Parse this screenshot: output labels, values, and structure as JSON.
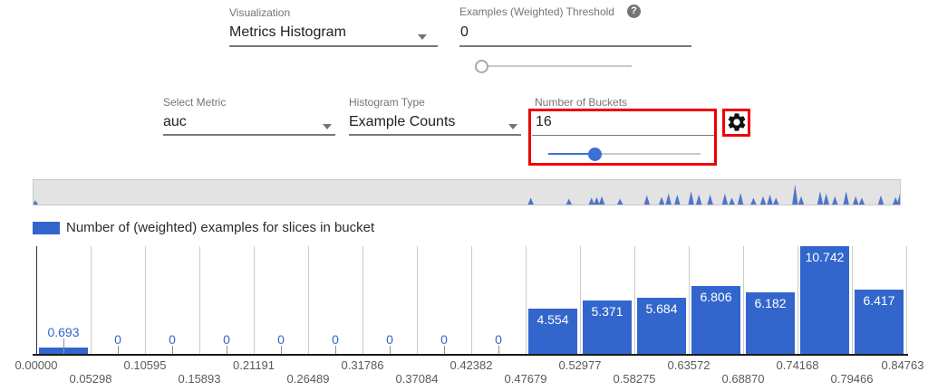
{
  "ui": {
    "colors": {
      "bar_blue": "#3366cc",
      "slider_blue": "#3d6fd6",
      "highlight_red": "#ec0000",
      "strip_bg": "#e3e3e3",
      "spike_blue": "#3e68c8"
    },
    "help_glyph": "?"
  },
  "controls": {
    "visualization": {
      "label": "Visualization",
      "value": "Metrics Histogram"
    },
    "threshold": {
      "label": "Examples (Weighted) Threshold",
      "value": "0",
      "slider_percent": 0
    },
    "select_metric": {
      "label": "Select Metric",
      "value": "auc"
    },
    "histogram_type": {
      "label": "Histogram Type",
      "value": "Example Counts"
    },
    "num_buckets": {
      "label": "Number of Buckets",
      "value": "16",
      "slider_percent": 31
    }
  },
  "legend": {
    "label": "Number of (weighted) examples for slices in bucket"
  },
  "chart_data": {
    "type": "bar",
    "title": "Number of (weighted) examples for slices in bucket",
    "categories": [
      "0.00000",
      "0.05298",
      "0.10595",
      "0.15893",
      "0.21191",
      "0.26489",
      "0.31786",
      "0.37084",
      "0.42382",
      "0.47679",
      "0.52977",
      "0.58275",
      "0.63572",
      "0.68870",
      "0.74168",
      "0.79466",
      "0.84763"
    ],
    "values": [
      0.693,
      0,
      0,
      0,
      0,
      0,
      0,
      0,
      0,
      4.554,
      5.371,
      5.684,
      6.806,
      6.182,
      10.742,
      6.417
    ],
    "annotations": [
      "0.693",
      "0",
      "0",
      "0",
      "0",
      "0",
      "0",
      "0",
      "0",
      "4.554",
      "5.371",
      "5.684",
      "6.806",
      "6.182",
      "10.742",
      "6.417"
    ],
    "ylim": [
      0,
      10.75
    ],
    "grid": true,
    "legend_position": "top-left"
  },
  "density_strip": {
    "spikes": [
      [
        0.002,
        0.17
      ],
      [
        0.574,
        0.28
      ],
      [
        0.618,
        0.24
      ],
      [
        0.644,
        0.28
      ],
      [
        0.65,
        0.31
      ],
      [
        0.656,
        0.34
      ],
      [
        0.677,
        0.24
      ],
      [
        0.708,
        0.38
      ],
      [
        0.725,
        0.31
      ],
      [
        0.733,
        0.45
      ],
      [
        0.743,
        0.41
      ],
      [
        0.759,
        0.55
      ],
      [
        0.768,
        0.41
      ],
      [
        0.781,
        0.41
      ],
      [
        0.798,
        0.45
      ],
      [
        0.806,
        0.28
      ],
      [
        0.816,
        0.48
      ],
      [
        0.831,
        0.28
      ],
      [
        0.842,
        0.34
      ],
      [
        0.85,
        0.41
      ],
      [
        0.857,
        0.28
      ],
      [
        0.879,
        0.83
      ],
      [
        0.886,
        0.34
      ],
      [
        0.908,
        0.55
      ],
      [
        0.915,
        0.45
      ],
      [
        0.925,
        0.34
      ],
      [
        0.938,
        0.55
      ],
      [
        0.949,
        0.34
      ],
      [
        0.956,
        0.28
      ],
      [
        0.978,
        0.38
      ],
      [
        0.995,
        0.31
      ],
      [
        1.0,
        0.45
      ]
    ]
  }
}
